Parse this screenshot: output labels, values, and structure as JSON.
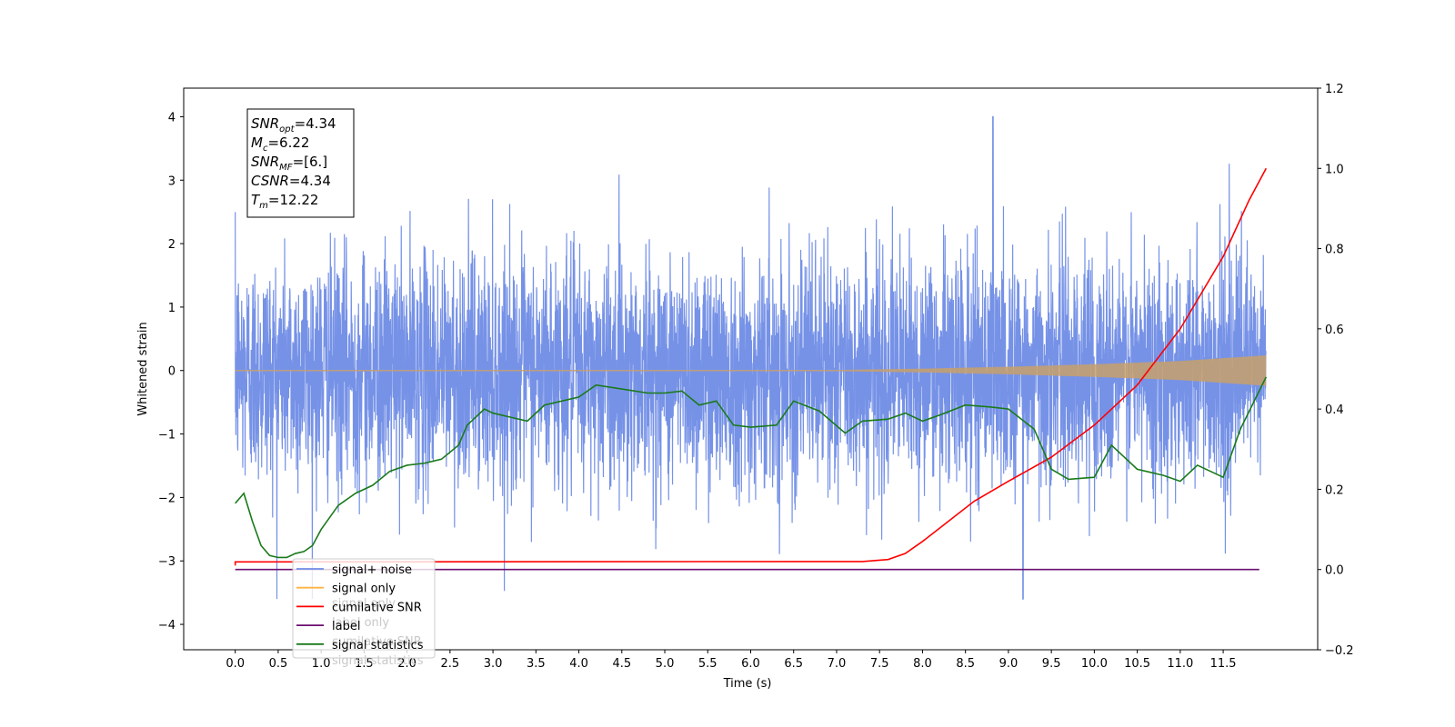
{
  "chart_data": {
    "type": "line",
    "xlabel": "Time (s)",
    "ylabel": "Whitened strain",
    "x_ticks": [
      "0.0",
      "0.5",
      "1.0",
      "1.5",
      "2.0",
      "2.5",
      "3.0",
      "3.5",
      "4.0",
      "4.5",
      "5.0",
      "5.5",
      "6.0",
      "6.5",
      "7.0",
      "7.5",
      "8.0",
      "8.5",
      "9.0",
      "9.5",
      "10.0",
      "10.5",
      "11.0",
      "11.5"
    ],
    "x_tick_values": [
      0.0,
      0.5,
      1.0,
      1.5,
      2.0,
      2.5,
      3.0,
      3.5,
      4.0,
      4.5,
      5.0,
      5.5,
      6.0,
      6.5,
      7.0,
      7.5,
      8.0,
      8.5,
      9.0,
      9.5,
      10.0,
      10.5,
      11.0,
      11.5
    ],
    "xlim": [
      -0.6,
      12.6
    ],
    "ylim_left": [
      -4.4,
      4.45
    ],
    "ylim_right": [
      -0.2,
      1.2
    ],
    "y_left_ticks": [
      "−4",
      "−3",
      "−2",
      "−1",
      "0",
      "1",
      "2",
      "3",
      "4"
    ],
    "y_left_tick_values": [
      -4,
      -3,
      -2,
      -1,
      0,
      1,
      2,
      3,
      4
    ],
    "y_right_ticks": [
      "−0.2",
      "0.0",
      "0.2",
      "0.4",
      "0.6",
      "0.8",
      "1.0",
      "1.2"
    ],
    "y_right_tick_values": [
      -0.2,
      0.0,
      0.2,
      0.4,
      0.6,
      0.8,
      1.0,
      1.2
    ],
    "duration_s": 12.0,
    "series": [
      {
        "name": "signal+ noise",
        "axis": "left",
        "color": "#6f8ce6",
        "description_envelope": {
          "typical_band": [
            -1.4,
            1.3
          ],
          "max": 4.12,
          "max_at": 8.82,
          "min": -3.9,
          "min_at": 9.17
        }
      },
      {
        "name": "signal only",
        "axis": "left",
        "color": "#ffb347",
        "envelope_amplitude": [
          [
            0.0,
            0.01
          ],
          [
            7.0,
            0.01
          ],
          [
            8.0,
            0.03
          ],
          [
            9.0,
            0.06
          ],
          [
            10.0,
            0.1
          ],
          [
            11.0,
            0.15
          ],
          [
            12.0,
            0.24
          ]
        ]
      },
      {
        "name": "cumilative SNR",
        "axis": "right",
        "color": "#ff0000",
        "points": [
          [
            0.0,
            0.01
          ],
          [
            0.0,
            0.019
          ],
          [
            7.3,
            0.02
          ],
          [
            7.6,
            0.025
          ],
          [
            7.8,
            0.04
          ],
          [
            8.0,
            0.07
          ],
          [
            8.3,
            0.12
          ],
          [
            8.6,
            0.17
          ],
          [
            9.0,
            0.22
          ],
          [
            9.5,
            0.28
          ],
          [
            10.0,
            0.36
          ],
          [
            10.5,
            0.46
          ],
          [
            11.0,
            0.6
          ],
          [
            11.5,
            0.78
          ],
          [
            11.8,
            0.92
          ],
          [
            12.0,
            1.0
          ]
        ]
      },
      {
        "name": "label",
        "axis": "right",
        "color": "#6a0f70",
        "points": [
          [
            0.0,
            0.0
          ],
          [
            11.92,
            0.0
          ]
        ]
      },
      {
        "name": "signal statistics",
        "axis": "right",
        "color": "#1a7a1a",
        "points": [
          [
            0.0,
            0.165
          ],
          [
            0.1,
            0.19
          ],
          [
            0.2,
            0.12
          ],
          [
            0.3,
            0.06
          ],
          [
            0.4,
            0.035
          ],
          [
            0.5,
            0.03
          ],
          [
            0.6,
            0.03
          ],
          [
            0.7,
            0.04
          ],
          [
            0.8,
            0.045
          ],
          [
            0.9,
            0.06
          ],
          [
            1.0,
            0.1
          ],
          [
            1.1,
            0.13
          ],
          [
            1.2,
            0.16
          ],
          [
            1.4,
            0.19
          ],
          [
            1.6,
            0.21
          ],
          [
            1.8,
            0.245
          ],
          [
            2.0,
            0.26
          ],
          [
            2.2,
            0.265
          ],
          [
            2.4,
            0.275
          ],
          [
            2.6,
            0.31
          ],
          [
            2.7,
            0.36
          ],
          [
            2.9,
            0.4
          ],
          [
            3.0,
            0.39
          ],
          [
            3.2,
            0.38
          ],
          [
            3.4,
            0.37
          ],
          [
            3.6,
            0.41
          ],
          [
            3.8,
            0.42
          ],
          [
            4.0,
            0.43
          ],
          [
            4.2,
            0.46
          ],
          [
            4.5,
            0.45
          ],
          [
            4.8,
            0.44
          ],
          [
            5.0,
            0.44
          ],
          [
            5.2,
            0.445
          ],
          [
            5.4,
            0.41
          ],
          [
            5.6,
            0.42
          ],
          [
            5.8,
            0.36
          ],
          [
            6.0,
            0.355
          ],
          [
            6.3,
            0.36
          ],
          [
            6.5,
            0.42
          ],
          [
            6.8,
            0.395
          ],
          [
            7.1,
            0.34
          ],
          [
            7.3,
            0.37
          ],
          [
            7.6,
            0.375
          ],
          [
            7.8,
            0.39
          ],
          [
            8.0,
            0.37
          ],
          [
            8.2,
            0.385
          ],
          [
            8.5,
            0.41
          ],
          [
            8.8,
            0.405
          ],
          [
            9.0,
            0.4
          ],
          [
            9.3,
            0.35
          ],
          [
            9.5,
            0.25
          ],
          [
            9.7,
            0.225
          ],
          [
            10.0,
            0.23
          ],
          [
            10.2,
            0.31
          ],
          [
            10.5,
            0.25
          ],
          [
            10.8,
            0.235
          ],
          [
            11.0,
            0.22
          ],
          [
            11.2,
            0.26
          ],
          [
            11.5,
            0.23
          ],
          [
            11.7,
            0.35
          ],
          [
            12.0,
            0.48
          ]
        ]
      }
    ],
    "legend": {
      "placement": "lower-left",
      "entries": [
        "signal+ noise",
        "signal only",
        "cumilative SNR",
        "label",
        "signal statistics"
      ],
      "ghost_text": [
        "signal only",
        "label only",
        "cumilative SNR",
        "signal statistics"
      ]
    },
    "annotation": {
      "lines": [
        {
          "base": "SNR",
          "sub": "opt",
          "value": "=4.34"
        },
        {
          "base": "M",
          "sub": "c",
          "value": "=6.22"
        },
        {
          "base": "SNR",
          "sub": "MF",
          "value": "=[6.]"
        },
        {
          "base": "CSNR",
          "sub": "",
          "value": "=4.34"
        },
        {
          "base": "T",
          "sub": "m",
          "value": "=12.22"
        }
      ]
    }
  }
}
